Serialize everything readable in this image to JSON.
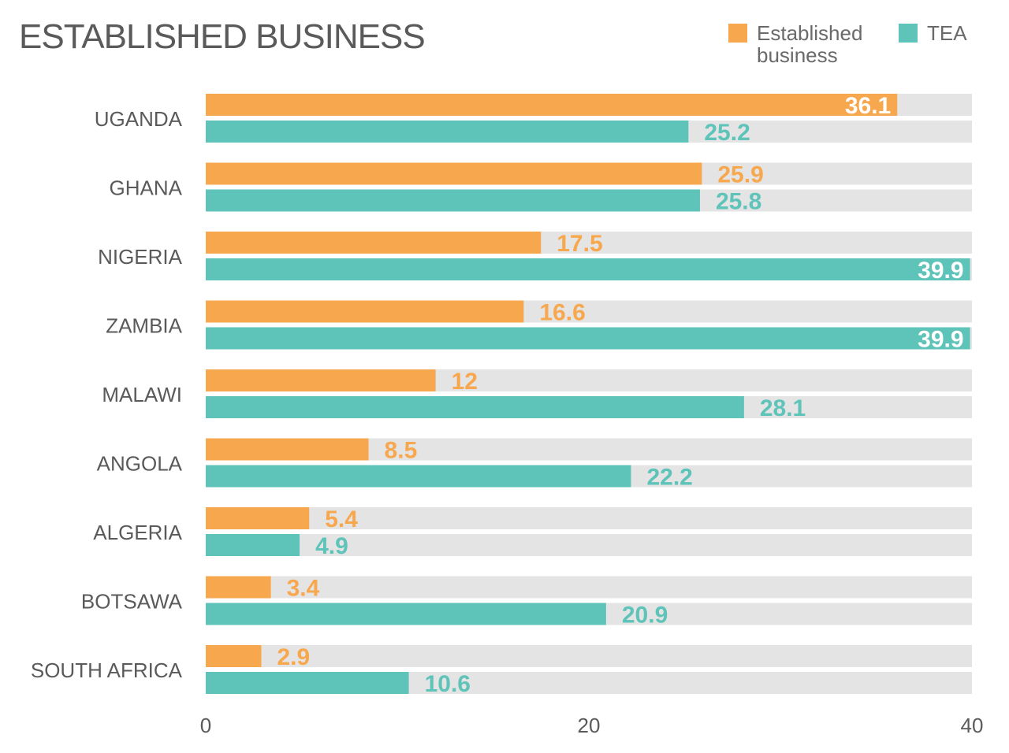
{
  "title": "ESTABLISHED BUSINESS",
  "colors": {
    "established": "#f7a74d",
    "tea": "#5ec3b9",
    "track": "#e4e4e4",
    "text": "#5a5a5a"
  },
  "legend": [
    {
      "name": "Established business",
      "color": "#f7a74d"
    },
    {
      "name": "TEA",
      "color": "#5ec3b9"
    }
  ],
  "chart_data": {
    "type": "bar",
    "orientation": "horizontal",
    "title": "ESTABLISHED BUSINESS",
    "categories": [
      "UGANDA",
      "GHANA",
      "NIGERIA",
      "ZAMBIA",
      "MALAWI",
      "ANGOLA",
      "ALGERIA",
      "BOTSAWA",
      "SOUTH AFRICA"
    ],
    "series": [
      {
        "name": "Established business",
        "values": [
          36.1,
          25.9,
          17.5,
          16.6,
          12,
          8.5,
          5.4,
          3.4,
          2.9
        ]
      },
      {
        "name": "TEA",
        "values": [
          25.2,
          25.8,
          39.9,
          39.9,
          28.1,
          22.2,
          4.9,
          20.9,
          10.6
        ]
      }
    ],
    "xlim": [
      0,
      40
    ],
    "xticks": [
      "0",
      "20",
      "40"
    ],
    "value_labels": {
      "established": [
        "36.1",
        "25.9",
        "17.5",
        "16.6",
        "12",
        "8.5",
        "5.4",
        "3.4",
        "2.9"
      ],
      "tea": [
        "25.2",
        "25.8",
        "39.9",
        "39.9",
        "28.1",
        "22.2",
        "4.9",
        "20.9",
        "10.6"
      ]
    },
    "grid": false,
    "legend_position": "top-right"
  }
}
